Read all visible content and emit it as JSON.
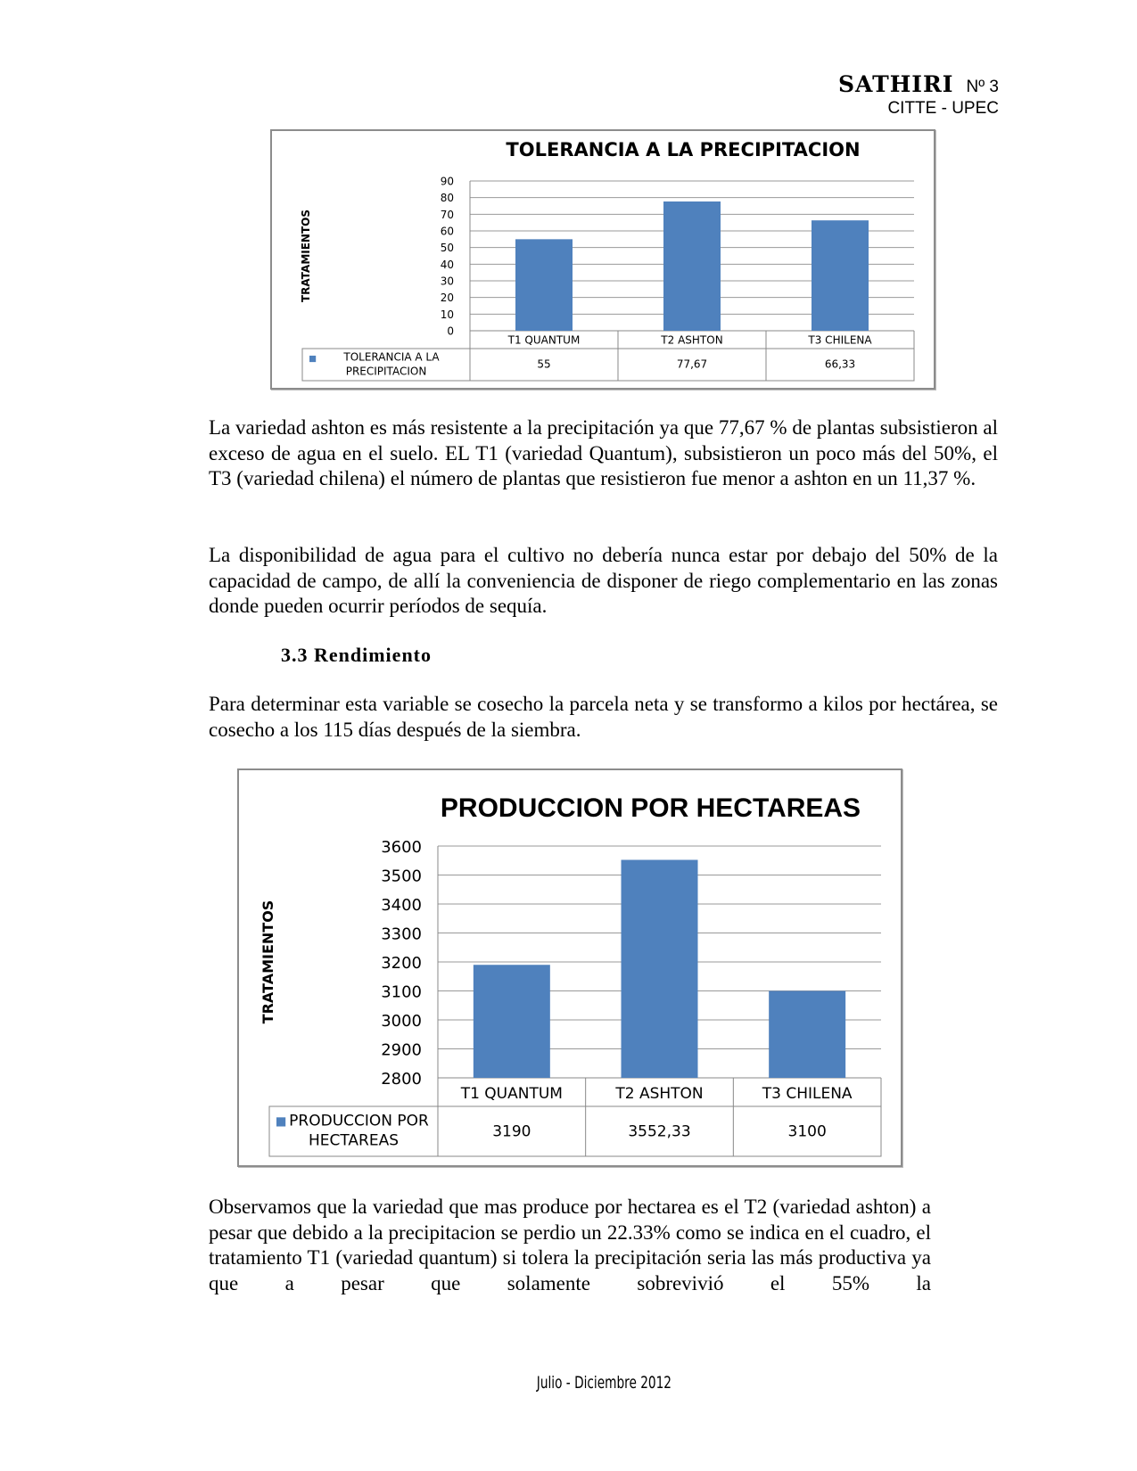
{
  "header": {
    "brand": "SATHIRI",
    "issue": "Nº 3",
    "institution": "CITTE - UPEC"
  },
  "paragraphs": [
    "La variedad ashton es más resistente a la precipitación ya que 77,67 % de plantas subsistieron al exceso de agua en el suelo. EL T1 (variedad Quantum), subsistieron un poco más del 50%, el T3 (variedad chilena) el número de plantas que resistieron fue menor a ashton en un 11,37 %.",
    "La disponibilidad de agua para el cultivo no debería nunca estar por debajo del 50% de la capacidad de campo, de allí la conveniencia de disponer de riego complementario en las zonas donde pueden ocurrir períodos de sequía.",
    "Para determinar esta variable se cosecho la parcela neta y se transformo a kilos por hectárea, se cosecho a los 115 días después de la siembra.",
    "Observamos que la variedad que mas produce por hectarea es el T2 (variedad ashton) a pesar que debido a la precipitacion se perdio un 22.33% como se indica en el cuadro, el tratamiento T1 (variedad quantum) si tolera la precipitación seria las más productiva ya que a pesar que solamente sobrevivió el 55% la"
  ],
  "section_heading": "3.3  Rendimiento",
  "footer": "Julio - Diciembre 2012",
  "chart_data": [
    {
      "type": "bar",
      "title": "TOLERANCIA  A LA PRECIPITACION",
      "ylabel": "TRATAMIENTOS",
      "xlabel": "",
      "categories": [
        "T1 QUANTUM",
        "T2 ASHTON",
        "T3 CHILENA"
      ],
      "series": [
        {
          "name": "TOLERANCIA  A LA PRECIPITACION",
          "values": [
            55,
            77.67,
            66.33
          ],
          "labels": [
            "55",
            "77,67",
            "66,33"
          ]
        }
      ],
      "ylim": [
        0,
        90
      ],
      "yticks": [
        0,
        10,
        20,
        30,
        40,
        50,
        60,
        70,
        80,
        90
      ],
      "grid": true,
      "legend": "data-table",
      "color": "#4f81bd"
    },
    {
      "type": "bar",
      "title": "PRODUCCION POR HECTAREAS",
      "ylabel": "TRATAMIENTOS",
      "xlabel": "",
      "categories": [
        "T1 QUANTUM",
        "T2 ASHTON",
        "T3 CHILENA"
      ],
      "series": [
        {
          "name": "PRODUCCION POR HECTAREAS",
          "values": [
            3190,
            3552.33,
            3100
          ],
          "labels": [
            "3190",
            "3552,33",
            "3100"
          ]
        }
      ],
      "ylim": [
        2800,
        3600
      ],
      "yticks": [
        2800,
        2900,
        3000,
        3100,
        3200,
        3300,
        3400,
        3500,
        3600
      ],
      "grid": true,
      "legend": "data-table",
      "color": "#4f81bd"
    }
  ]
}
